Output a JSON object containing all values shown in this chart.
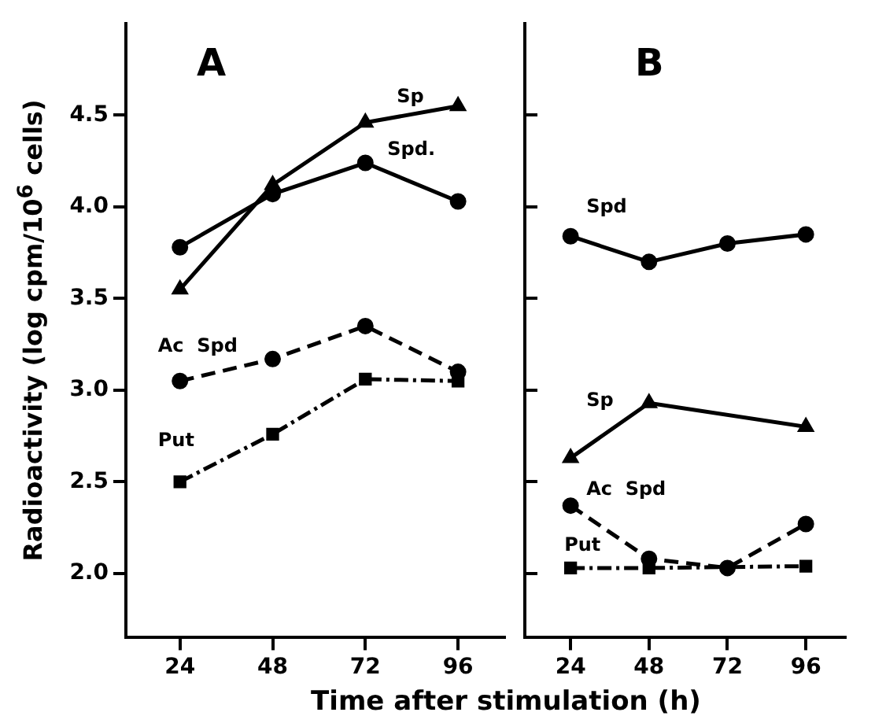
{
  "chart_data": [
    {
      "type": "line",
      "title": "A",
      "xlabel": "Time after stimulation (h)",
      "ylabel": "Radioactivity (log cpm/10$^{6}$ cells)",
      "x": [
        24,
        48,
        72,
        96
      ],
      "xlim": [
        10,
        108
      ],
      "xticks": [
        24,
        48,
        72,
        96
      ],
      "ylim": [
        1.65,
        5.0
      ],
      "yticks": [
        {
          "value": 2.0,
          "label": "2.0"
        },
        2.5,
        {
          "value": 3.0,
          "label": "3.0"
        },
        3.5,
        {
          "value": 4.0,
          "label": "4.0"
        },
        4.5
      ],
      "grid": false,
      "legend": false,
      "series": [
        {
          "name": "Sp",
          "color": "#000000",
          "marker": "triangle",
          "line_style": "solid",
          "values": [
            3.55,
            4.12,
            4.46,
            4.55
          ]
        },
        {
          "name": "Spd.",
          "color": "#000000",
          "marker": "circle",
          "line_style": "solid",
          "values": [
            3.78,
            4.07,
            4.24,
            4.03
          ]
        },
        {
          "name": "Ac  Spd",
          "color": "#000000",
          "marker": "circle",
          "line_style": "dashed",
          "values": [
            3.05,
            3.17,
            3.35,
            3.1
          ]
        },
        {
          "name": "Put",
          "color": "#000000",
          "marker": "square",
          "line_style": "dotted",
          "values": [
            2.5,
            2.76,
            3.06,
            3.05
          ]
        }
      ]
    },
    {
      "type": "line",
      "title": "B",
      "x": [
        24,
        48,
        72,
        96
      ],
      "xlim": [
        10,
        108
      ],
      "xticks": [
        24,
        48,
        72,
        96
      ],
      "ylim": [
        1.65,
        5.0
      ],
      "yticks": [
        {
          "value": 2.0,
          "label": null
        },
        {
          "value": 2.5,
          "label": null
        },
        {
          "value": 3.0,
          "label": null
        },
        {
          "value": 3.5,
          "label": null
        },
        {
          "value": 4.0,
          "label": null
        },
        {
          "value": 4.5,
          "label": null
        }
      ],
      "tick_labels": "x",
      "grid": false,
      "legend": false,
      "series": [
        {
          "name": "Spd",
          "color": "#000000",
          "marker": "circle",
          "line_style": "solid",
          "values": [
            3.84,
            3.7,
            3.8,
            3.85
          ]
        },
        {
          "name": "Sp",
          "color": "#000000",
          "marker": "triangle",
          "line_style": "solid",
          "x": [
            24,
            48,
            96
          ],
          "values": [
            2.63,
            2.93,
            2.8
          ]
        },
        {
          "name": "Ac  Spd",
          "color": "#000000",
          "marker": "circle",
          "line_style": "dashed",
          "values": [
            2.37,
            2.08,
            2.03,
            2.27
          ]
        },
        {
          "name": "Put",
          "color": "#000000",
          "marker": "square",
          "line_style": "dotted",
          "x": [
            24,
            48,
            96
          ],
          "values": [
            2.03,
            2.03,
            2.04
          ]
        }
      ]
    }
  ]
}
